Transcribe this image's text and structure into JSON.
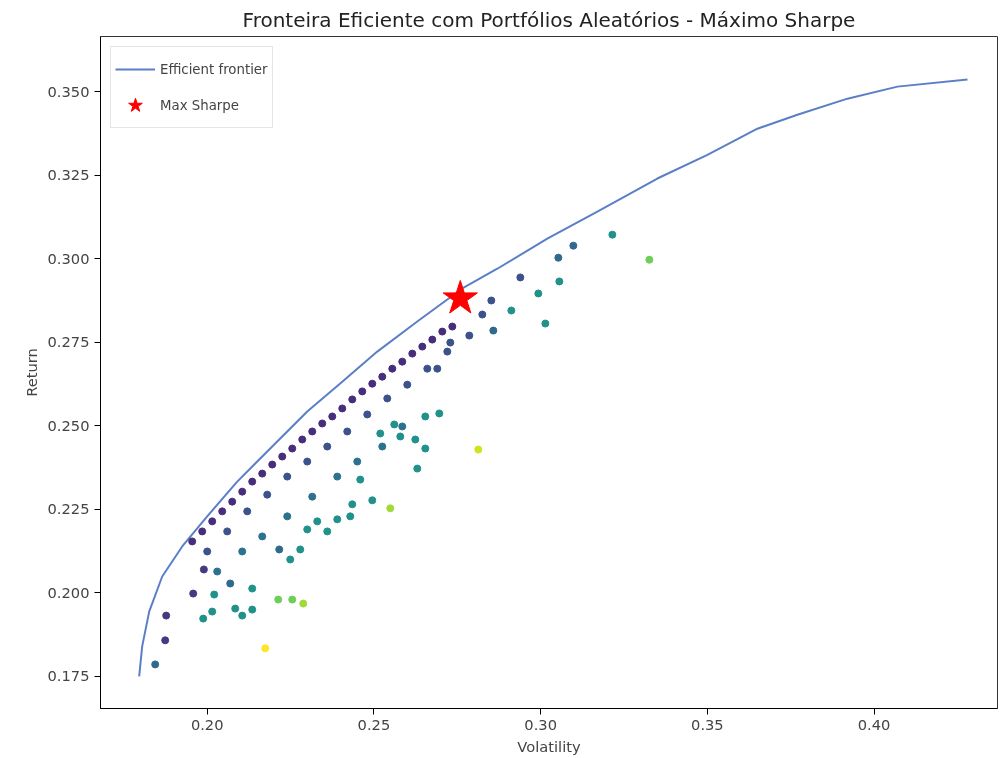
{
  "chart_data": {
    "type": "scatter",
    "title": "Fronteira Eficiente com Portfólios Aleatórios - Máximo Sharpe",
    "xlabel": "Volatility",
    "ylabel": "Return",
    "xlim": [
      0.168,
      0.437
    ],
    "ylim": [
      0.1654,
      0.3665
    ],
    "xticks": [
      {
        "value": 0.2,
        "label": "0.20"
      },
      {
        "value": 0.25,
        "label": "0.25"
      },
      {
        "value": 0.3,
        "label": "0.30"
      },
      {
        "value": 0.35,
        "label": "0.35"
      },
      {
        "value": 0.4,
        "label": "0.40"
      }
    ],
    "yticks": [
      {
        "value": 0.175,
        "label": "0.175"
      },
      {
        "value": 0.2,
        "label": "0.200"
      },
      {
        "value": 0.225,
        "label": "0.225"
      },
      {
        "value": 0.25,
        "label": "0.250"
      },
      {
        "value": 0.275,
        "label": "0.275"
      },
      {
        "value": 0.3,
        "label": "0.300"
      },
      {
        "value": 0.325,
        "label": "0.325"
      },
      {
        "value": 0.35,
        "label": "0.350"
      }
    ],
    "grid": false,
    "legend": "top left",
    "series": [
      {
        "name": "Efficient frontier",
        "type": "line",
        "line_style": "solid",
        "color": "#5b7fc7",
        "x": [
          0.1796,
          0.1805,
          0.1826,
          0.1865,
          0.1925,
          0.2,
          0.209,
          0.2195,
          0.23,
          0.2405,
          0.251,
          0.263,
          0.2765,
          0.287,
          0.302,
          0.317,
          0.335,
          0.35,
          0.365,
          0.377,
          0.392,
          0.407,
          0.428
        ],
        "values": [
          0.175,
          0.184,
          0.1944,
          0.2049,
          0.2139,
          0.2229,
          0.2333,
          0.2438,
          0.2543,
          0.2632,
          0.2722,
          0.2812,
          0.2911,
          0.297,
          0.306,
          0.3141,
          0.324,
          0.3311,
          0.3389,
          0.3431,
          0.3479,
          0.3515,
          0.3536
        ]
      },
      {
        "marker": "circle",
        "x": [
          0.1955,
          0.1985,
          0.2015,
          0.2045,
          0.2075,
          0.2105,
          0.2135,
          0.2165,
          0.2195,
          0.2225,
          0.2255,
          0.2285,
          0.2315,
          0.2345,
          0.2375,
          0.2405,
          0.2435,
          0.2465,
          0.2495,
          0.2525,
          0.2555,
          0.2585,
          0.2615,
          0.2645,
          0.2675,
          0.2705,
          0.2735,
          0.2,
          0.206,
          0.212,
          0.218,
          0.224,
          0.23,
          0.236,
          0.242,
          0.248,
          0.254,
          0.26,
          0.266,
          0.272,
          0.203,
          0.2105,
          0.2165,
          0.224,
          0.2315,
          0.239,
          0.245,
          0.2525,
          0.2585,
          0.1958,
          0.1877,
          0.1874,
          0.1844,
          0.199,
          0.2069,
          0.2216,
          0.2786,
          0.2825,
          0.2852,
          0.2729,
          0.269,
          0.2939,
          0.2858,
          0.3098,
          0.3053,
          0.2135,
          0.2105,
          0.2084,
          0.2015,
          0.1988,
          0.2021,
          0.2135,
          0.2249,
          0.2279,
          0.236,
          0.239,
          0.2429,
          0.2435,
          0.2495,
          0.263,
          0.2654,
          0.2579,
          0.2519,
          0.2654,
          0.2696,
          0.2624,
          0.2561,
          0.2459,
          0.233,
          0.23,
          0.3215,
          0.3056,
          0.2993,
          0.3014,
          0.2912,
          0.2174,
          0.2813,
          0.2549,
          0.2288,
          0.2255,
          0.2213,
          0.3326
        ],
        "values": [
          0.2154,
          0.2184,
          0.2214,
          0.2244,
          0.2273,
          0.2303,
          0.2333,
          0.2357,
          0.2384,
          0.2408,
          0.2432,
          0.2459,
          0.2483,
          0.2507,
          0.2528,
          0.2552,
          0.2579,
          0.2603,
          0.2626,
          0.2647,
          0.2671,
          0.2692,
          0.2716,
          0.2737,
          0.2758,
          0.2782,
          0.2797,
          0.2124,
          0.2184,
          0.2244,
          0.2294,
          0.2348,
          0.2393,
          0.2438,
          0.2483,
          0.2534,
          0.2582,
          0.2623,
          0.2671,
          0.2722,
          0.2064,
          0.2124,
          0.2169,
          0.2229,
          0.2288,
          0.2348,
          0.2393,
          0.2438,
          0.2498,
          0.1998,
          0.1932,
          0.1858,
          0.1786,
          0.207,
          0.2028,
          0.213,
          0.277,
          0.2833,
          0.2875,
          0.2749,
          0.2671,
          0.2944,
          0.2785,
          0.3039,
          0.3003,
          0.195,
          0.1932,
          0.1953,
          0.1944,
          0.1923,
          0.1995,
          0.2013,
          0.21,
          0.213,
          0.2184,
          0.222,
          0.2229,
          0.2265,
          0.2277,
          0.2372,
          0.2432,
          0.2468,
          0.2477,
          0.2528,
          0.2537,
          0.2459,
          0.2504,
          0.2339,
          0.2214,
          0.219,
          0.3072,
          0.2932,
          0.2896,
          0.2806,
          0.2845,
          0.1834,
          0.2429,
          0.2253,
          0.1968,
          0.198,
          0.198,
          0.2997
        ],
        "colors": [
          "#472d7b",
          "#472d7b",
          "#472d7b",
          "#472d7b",
          "#472d7b",
          "#472d7b",
          "#472d7b",
          "#472d7b",
          "#472d7b",
          "#472d7b",
          "#472d7b",
          "#472d7b",
          "#472d7b",
          "#472d7b",
          "#472d7b",
          "#472d7b",
          "#472d7b",
          "#472d7b",
          "#472d7b",
          "#472d7b",
          "#472d7b",
          "#472d7b",
          "#472d7b",
          "#472d7b",
          "#472d7b",
          "#472d7b",
          "#472d7b",
          "#3b528b",
          "#3b528b",
          "#3b528b",
          "#3b528b",
          "#3b528b",
          "#3b528b",
          "#3b528b",
          "#3b528b",
          "#3b528b",
          "#3b528b",
          "#3b528b",
          "#3b528b",
          "#3b528b",
          "#2c728e",
          "#2c728e",
          "#2c728e",
          "#2c728e",
          "#2c728e",
          "#2c728e",
          "#2c728e",
          "#2c728e",
          "#2c728e",
          "#443983",
          "#443983",
          "#443983",
          "#31688e",
          "#443983",
          "#31688e",
          "#31688e",
          "#3b528b",
          "#3b528b",
          "#3b528b",
          "#3b528b",
          "#3b528b",
          "#3b528b",
          "#31688e",
          "#31688e",
          "#31688e",
          "#21918c",
          "#21918c",
          "#21918c",
          "#21918c",
          "#21918c",
          "#21918c",
          "#21918c",
          "#21918c",
          "#21918c",
          "#21918c",
          "#21918c",
          "#21918c",
          "#21918c",
          "#21918c",
          "#21918c",
          "#21918c",
          "#21918c",
          "#21918c",
          "#21918c",
          "#21918c",
          "#21918c",
          "#21918c",
          "#21918c",
          "#21918c",
          "#21918c",
          "#21918c",
          "#21918c",
          "#21918c",
          "#21918c",
          "#21918c",
          "#fde725",
          "#d2e21b",
          "#a0da39",
          "#a0da39",
          "#6ece58",
          "#6ece58",
          "#6ece58"
        ]
      },
      {
        "name": "Max Sharpe",
        "marker": "star",
        "color": "#ff0000",
        "x": [
          0.2759
        ],
        "values": [
          0.2881
        ]
      }
    ]
  }
}
